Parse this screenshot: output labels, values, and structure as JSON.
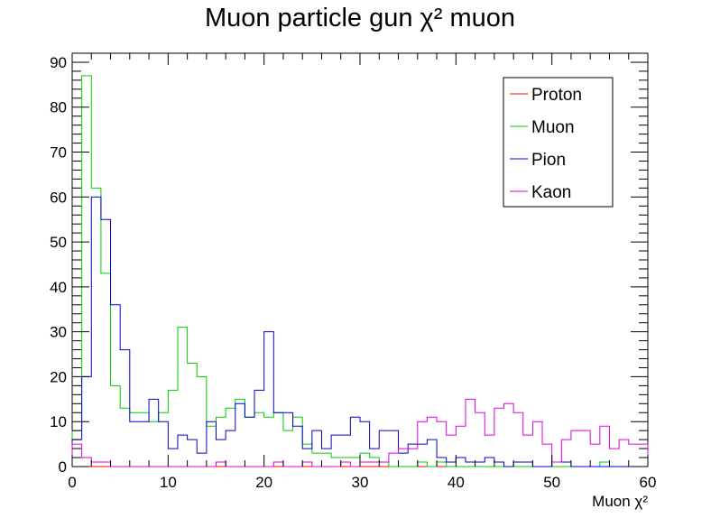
{
  "chart_data": {
    "type": "histogram",
    "title": "Muon particle gun χ² muon",
    "xlabel": "Muon χ²",
    "ylabel": "",
    "xlim": [
      0,
      60
    ],
    "ylim": [
      0,
      92
    ],
    "bin_width": 1,
    "x_ticks": [
      "0",
      "10",
      "20",
      "30",
      "40",
      "50",
      "60"
    ],
    "y_ticks": [
      "0",
      "10",
      "20",
      "30",
      "40",
      "50",
      "60",
      "70",
      "80",
      "90"
    ],
    "legend_position": "top-right",
    "series": [
      {
        "name": "Proton",
        "color": "#ff0000",
        "values": [
          0,
          0,
          0,
          0,
          0,
          0,
          0,
          0,
          0,
          0,
          0,
          0,
          0,
          0,
          0,
          0,
          0,
          0,
          0,
          0,
          0,
          0,
          0,
          0,
          0,
          0,
          0,
          0,
          0,
          0,
          0,
          0,
          0,
          0,
          0,
          0,
          0,
          0,
          0,
          0,
          0,
          0,
          0,
          0,
          0,
          0,
          0,
          0,
          0,
          0,
          0,
          0,
          0,
          0,
          0,
          0,
          0,
          0,
          0,
          0
        ]
      },
      {
        "name": "Muon",
        "color": "#00cc00",
        "values": [
          8,
          87,
          62,
          43,
          18,
          13,
          12,
          12,
          10,
          12,
          17,
          31,
          23,
          20,
          9,
          11,
          13,
          15,
          11,
          12,
          11,
          12,
          8,
          11,
          5,
          3,
          3,
          2,
          2,
          2,
          3,
          2,
          1,
          0,
          0,
          0,
          1,
          0,
          1,
          0,
          0,
          0,
          0,
          0,
          0,
          0,
          0,
          0,
          0,
          0,
          0,
          0,
          0,
          0,
          0,
          1,
          0,
          0,
          0,
          0
        ]
      },
      {
        "name": "Pion",
        "color": "#0000cc",
        "values": [
          6,
          20,
          60,
          55,
          36,
          26,
          10,
          10,
          15,
          10,
          4,
          7,
          6,
          3,
          10,
          6,
          8,
          14,
          11,
          17,
          30,
          12,
          12,
          9,
          4,
          8,
          4,
          7,
          7,
          11,
          10,
          4,
          8,
          8,
          3,
          5,
          5,
          6,
          2,
          1,
          2,
          1,
          1,
          2,
          1,
          0,
          1,
          1,
          0,
          0,
          1,
          1,
          0,
          0,
          0,
          0,
          0,
          0,
          0,
          0
        ]
      },
      {
        "name": "Kaon",
        "color": "#dd00dd",
        "values": [
          5,
          2,
          1,
          1,
          0,
          0,
          0,
          0,
          0,
          0,
          0,
          0,
          0,
          0,
          0,
          1,
          0,
          0,
          0,
          0,
          0,
          1,
          0,
          0,
          1,
          0,
          0,
          0,
          1,
          0,
          1,
          1,
          1,
          3,
          4,
          4,
          10,
          11,
          10,
          7,
          9,
          15,
          12,
          7,
          13,
          14,
          12,
          7,
          10,
          5,
          1,
          6,
          8,
          8,
          5,
          9,
          4,
          6,
          5,
          5
        ]
      }
    ]
  }
}
